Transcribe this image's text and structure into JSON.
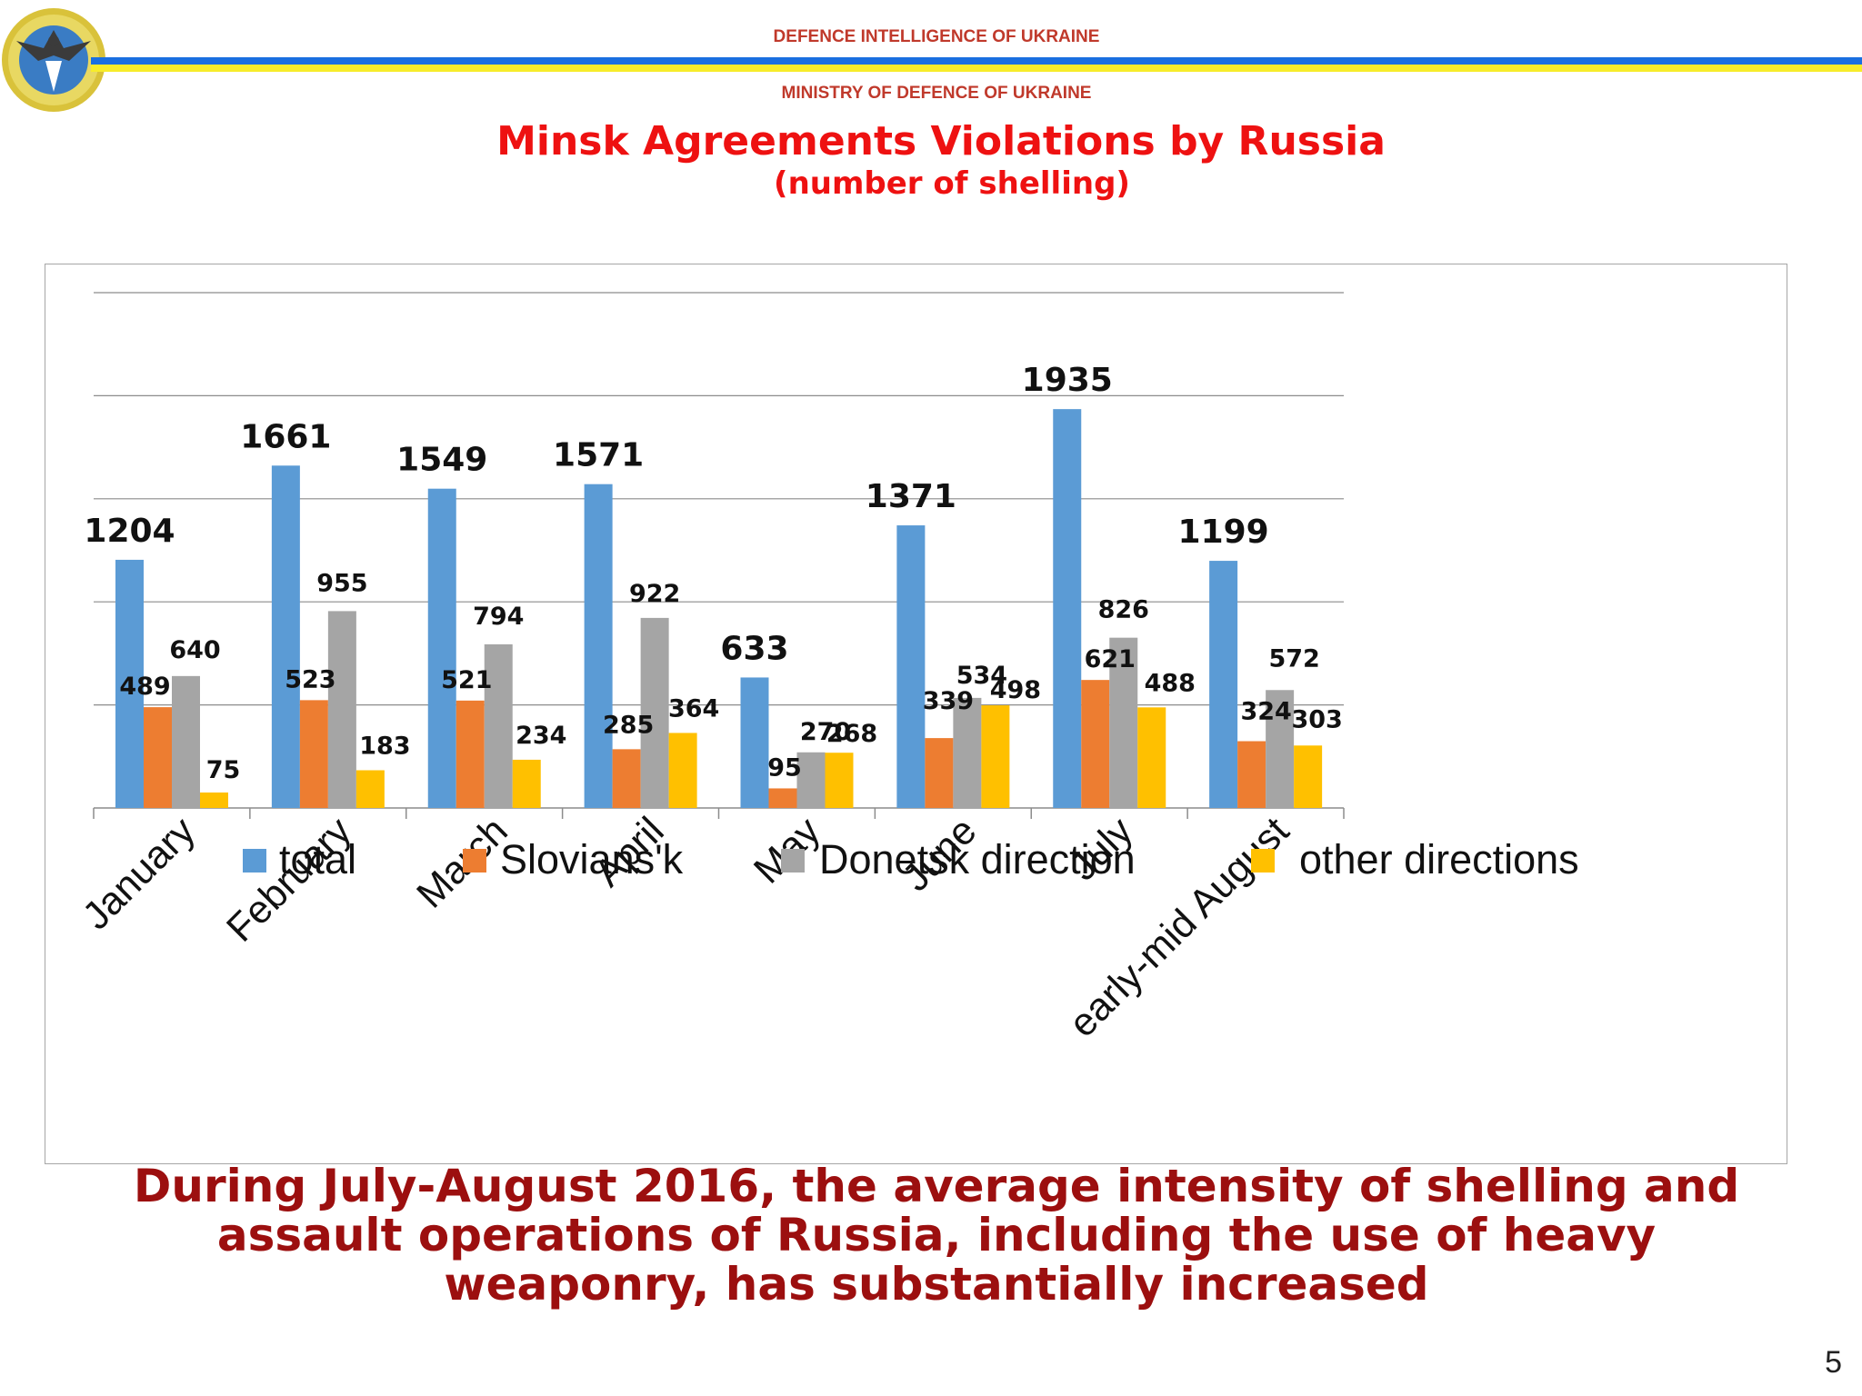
{
  "header": {
    "org_top": "DEFENCE INTELLIGENCE OF UKRAINE",
    "org_bottom": "MINISTRY OF DEFENCE OF UKRAINE",
    "title": "Minsk Agreements Violations by Russia",
    "subtitle": "(number of shelling)"
  },
  "emblem": {
    "icon": "defence-intelligence-emblem-icon"
  },
  "colors": {
    "title": "#ee1111",
    "org": "#c0392b",
    "conclusion": "#9c0f0f",
    "stripe_blue": "#1a6fe0",
    "stripe_yellow": "#f7ec2a",
    "total": "#5b9bd5",
    "slovians": "#ed7d31",
    "donetsk": "#a5a5a5",
    "other": "#ffc000"
  },
  "chart_data": {
    "type": "bar",
    "title": "Minsk Agreements Violations by Russia",
    "subtitle": "(number of shelling)",
    "categories": [
      "January",
      "February",
      "March",
      "April",
      "May",
      "June",
      "July",
      "early-mid August"
    ],
    "series": [
      {
        "name": "total",
        "values": [
          1204,
          1661,
          1549,
          1571,
          633,
          1371,
          1935,
          1199
        ]
      },
      {
        "name": "Slovians'k",
        "values": [
          489,
          523,
          521,
          285,
          95,
          339,
          621,
          324
        ]
      },
      {
        "name": "Donetsk direction",
        "values": [
          640,
          955,
          794,
          922,
          270,
          534,
          826,
          572
        ]
      },
      {
        "name": "other directions",
        "values": [
          75,
          183,
          234,
          364,
          268,
          498,
          488,
          303
        ]
      }
    ],
    "ylim": [
      0,
      2500
    ],
    "grid": true,
    "legend": "bottom",
    "xlabel": "",
    "ylabel": ""
  },
  "conclusion": "During July-August 2016, the average intensity of shelling and assault operations of Russia, including the use of heavy weaponry, has substantially increased",
  "page_number": "5"
}
